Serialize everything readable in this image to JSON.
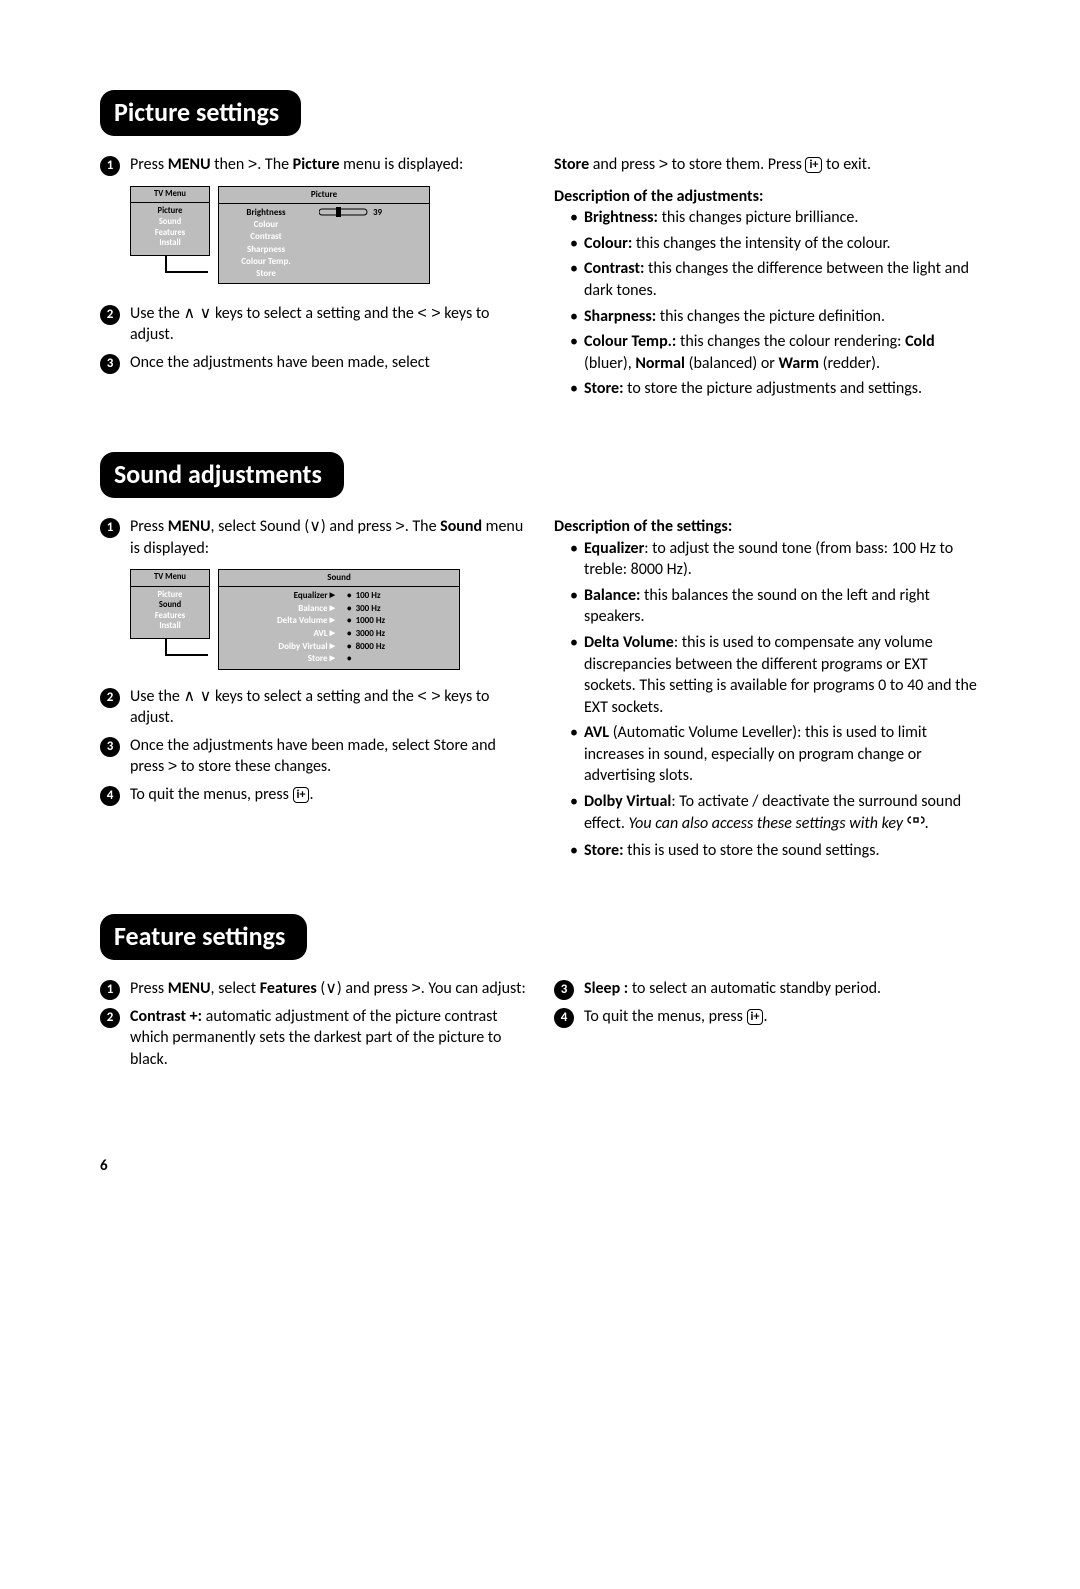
{
  "pageNumber": "6",
  "sections": {
    "picture": {
      "title": "Picture settings",
      "steps_left": [
        {
          "n": "1",
          "html": "Press <b>MENU</b> then <span class='sym'>&gt;</span>. The <b>Picture</b> menu is displayed:"
        },
        {
          "n": "2",
          "html": "Use the <span class='sym'>&#8743; &#8744;</span> keys to select a setting and the <span class='sym'>&lt; &gt;</span> keys to adjust."
        },
        {
          "n": "3",
          "html": "Once the adjustments have been made, select"
        }
      ],
      "right_intro": "<b>Store</b> and press <span class='sym'>&gt;</span> to store them. Press <span class='iplus'>i+</span> to exit.",
      "desc_title": "Description of the adjustments:",
      "descriptions": [
        "<b>Brightness:</b> this changes picture brilliance.",
        "<b>Colour:</b> this changes the intensity of the colour.",
        "<b>Contrast:</b> this changes the difference between the light and dark tones.",
        "<b>Sharpness:</b> this changes the picture definition.",
        "<b>Colour Temp.:</b> this changes the colour rendering: <b>Cold</b> (bluer), <b>Normal</b> (balanced) or <b>Warm</b> (redder).",
        "<b>Store:</b> to store the picture adjustments and settings."
      ],
      "menu": {
        "tvMenuTitle": "TV Menu",
        "tvMenuItems": [
          "Picture",
          "Sound",
          "Features",
          "Install"
        ],
        "mainTitle": "Picture",
        "mainItems": [
          "Brightness",
          "Colour",
          "Contrast",
          "Sharpness",
          "Colour Temp.",
          "Store"
        ],
        "sliderValue": "39"
      }
    },
    "sound": {
      "title": "Sound adjustments",
      "steps_left": [
        {
          "n": "1",
          "html": "Press <b>MENU</b>, select Sound (<span class='sym'>&#8744;</span>) and press <span class='sym'>&gt;</span>. The <b>Sound</b> menu is displayed:"
        },
        {
          "n": "2",
          "html": "Use the <span class='sym'>&#8743; &#8744;</span> keys to select a setting and the <span class='sym'>&lt; &gt;</span> keys to adjust."
        },
        {
          "n": "3",
          "html": "Once the adjustments have been made, select Store and press <span class='sym'>&gt;</span> to store these changes."
        },
        {
          "n": "4",
          "html": "To quit the menus, press <span class='iplus'>i+</span>."
        }
      ],
      "desc_title": "Description of the settings:",
      "descriptions": [
        "<b>Equalizer</b>: to adjust the sound tone (from bass: 100 Hz to treble: 8000 Hz).",
        "<b>Balance:</b> this balances the sound on the left and right speakers.",
        "<b>Delta Volume</b>: this is used to compensate any volume discrepancies between the different programs or EXT sockets. This setting is available for programs 0 to 40 and the EXT sockets.",
        "<b>AVL</b> (Automatic Volume Leveller): this is used to limit increases in sound, especially on program change or advertising slots.",
        "<b>Dolby Virtual</b>: To activate / deactivate the surround sound effect. <span class='italic'>You can also access these settings with key</span> <span class='surround-icon'><svg width='18' height='15'><path d='M4,2 A3,3 0 0,0 4,8' fill='none' stroke='#000' stroke-width='1.4'/><path d='M14,2 A3,3 0 0,1 14,8' fill='none' stroke='#000' stroke-width='1.4'/><rect x='7' y='3' width='4' height='4' fill='none' stroke='#000' stroke-width='1.4'/></svg></span>.",
        "<b>Store:</b> this is used to store the sound settings."
      ],
      "menu": {
        "tvMenuTitle": "TV Menu",
        "tvMenuItems": [
          "Picture",
          "Sound",
          "Features",
          "Install"
        ],
        "mainTitle": "Sound",
        "mainItems": [
          "Equalizer",
          "Balance",
          "Delta Volume",
          "AVL",
          "Dolby Virtual",
          "Store"
        ],
        "hzValues": [
          "100 Hz",
          "300 Hz",
          "1000 Hz",
          "3000 Hz",
          "8000 Hz"
        ]
      }
    },
    "features": {
      "title": "Feature settings",
      "steps_left": [
        {
          "n": "1",
          "html": "Press <b>MENU</b>, select <b>Features</b> (<span class='sym'>&#8744;</span>) and press <span class='sym'>&gt;</span>. You can adjust:"
        },
        {
          "n": "2",
          "html": "<b>Contrast +:</b> automatic adjustment of the picture contrast which permanently sets the darkest part of the picture to black."
        }
      ],
      "steps_right": [
        {
          "n": "3",
          "html": "<b>Sleep :</b> to select an automatic standby period."
        },
        {
          "n": "4",
          "html": "To quit the menus, press <span class='iplus'>i+</span>."
        }
      ]
    }
  }
}
